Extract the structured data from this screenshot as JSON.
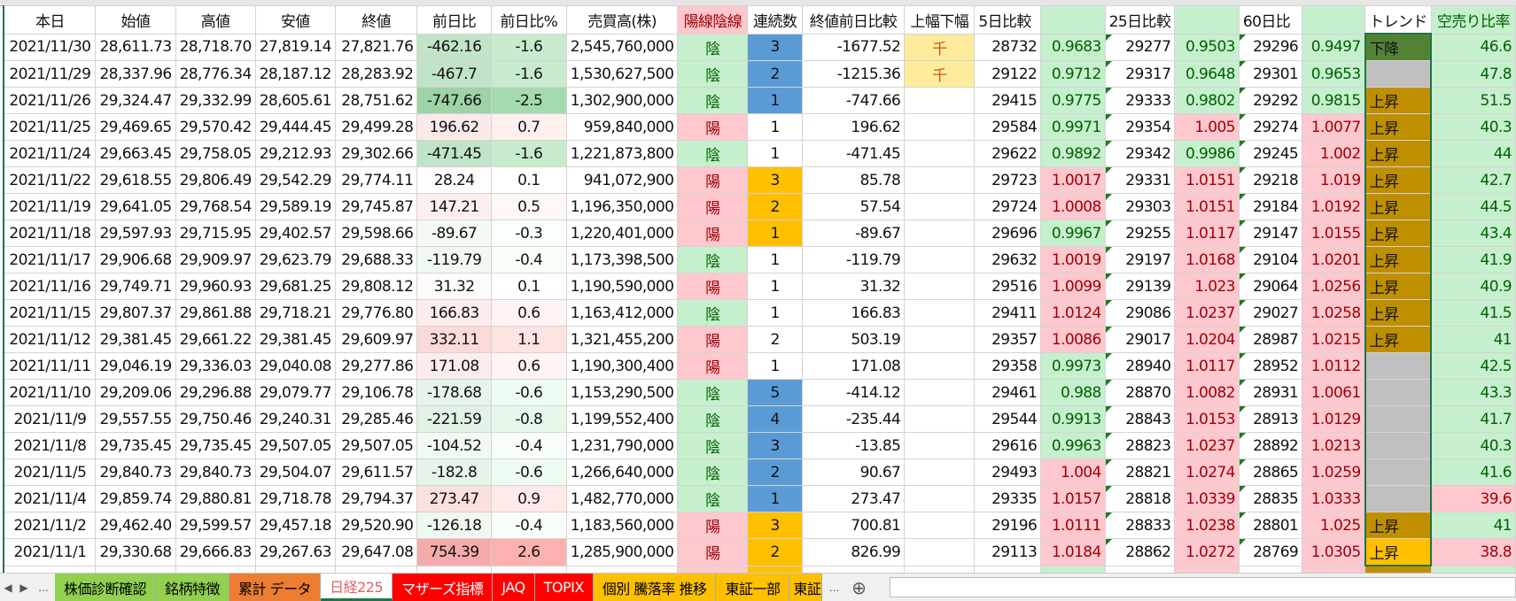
{
  "headers": [
    "本日",
    "始値",
    "高値",
    "安値",
    "終値",
    "前日比",
    "前日比%",
    "売買高(株)",
    "陽線陰線",
    "連続数",
    "終値前日比較",
    "上幅下幅",
    "5日比較",
    "",
    "25日比較",
    "",
    "60日比",
    "",
    "トレンド",
    "空売り比率"
  ],
  "rows": [
    [
      "2021/11/30",
      "28,611.73",
      "28,718.70",
      "27,819.14",
      "27,821.76",
      "-462.16",
      "-1.6",
      "2,545,760,000",
      "陰",
      "3",
      "-1677.52",
      "千",
      "28732",
      "0.9683",
      "29277",
      "0.9503",
      "29296",
      "0.9497",
      "下降",
      "46.6"
    ],
    [
      "2021/11/29",
      "28,337.96",
      "28,776.34",
      "28,187.12",
      "28,283.92",
      "-467.7",
      "-1.6",
      "1,530,627,500",
      "陰",
      "2",
      "-1215.36",
      "千",
      "29122",
      "0.9712",
      "29317",
      "0.9648",
      "29301",
      "0.9653",
      "",
      "47.8"
    ],
    [
      "2021/11/26",
      "29,324.47",
      "29,332.99",
      "28,605.61",
      "28,751.62",
      "-747.66",
      "-2.5",
      "1,302,900,000",
      "陰",
      "1",
      "-747.66",
      "",
      "29415",
      "0.9775",
      "29333",
      "0.9802",
      "29292",
      "0.9815",
      "上昇",
      "51.5"
    ],
    [
      "2021/11/25",
      "29,469.65",
      "29,570.42",
      "29,444.45",
      "29,499.28",
      "196.62",
      "0.7",
      "959,840,000",
      "陽",
      "1",
      "196.62",
      "",
      "29584",
      "0.9971",
      "29354",
      "1.005",
      "29274",
      "1.0077",
      "上昇",
      "40.3"
    ],
    [
      "2021/11/24",
      "29,663.45",
      "29,758.05",
      "29,212.93",
      "29,302.66",
      "-471.45",
      "-1.6",
      "1,221,873,800",
      "陰",
      "1",
      "-471.45",
      "",
      "29622",
      "0.9892",
      "29342",
      "0.9986",
      "29245",
      "1.002",
      "上昇",
      "44"
    ],
    [
      "2021/11/22",
      "29,618.55",
      "29,806.49",
      "29,542.29",
      "29,774.11",
      "28.24",
      "0.1",
      "941,072,900",
      "陽",
      "3",
      "85.78",
      "",
      "29723",
      "1.0017",
      "29331",
      "1.0151",
      "29218",
      "1.019",
      "上昇",
      "42.7"
    ],
    [
      "2021/11/19",
      "29,641.05",
      "29,768.54",
      "29,589.19",
      "29,745.87",
      "147.21",
      "0.5",
      "1,196,350,000",
      "陽",
      "2",
      "57.54",
      "",
      "29724",
      "1.0008",
      "29303",
      "1.0151",
      "29184",
      "1.0192",
      "上昇",
      "44.5"
    ],
    [
      "2021/11/18",
      "29,597.93",
      "29,715.95",
      "29,402.57",
      "29,598.66",
      "-89.67",
      "-0.3",
      "1,220,401,000",
      "陽",
      "1",
      "-89.67",
      "",
      "29696",
      "0.9967",
      "29255",
      "1.0117",
      "29147",
      "1.0155",
      "上昇",
      "43.4"
    ],
    [
      "2021/11/17",
      "29,906.68",
      "29,909.97",
      "29,623.79",
      "29,688.33",
      "-119.79",
      "-0.4",
      "1,173,398,500",
      "陰",
      "1",
      "-119.79",
      "",
      "29632",
      "1.0019",
      "29197",
      "1.0168",
      "29104",
      "1.0201",
      "上昇",
      "41.9"
    ],
    [
      "2021/11/16",
      "29,749.71",
      "29,960.93",
      "29,681.25",
      "29,808.12",
      "31.32",
      "0.1",
      "1,190,590,000",
      "陽",
      "1",
      "31.32",
      "",
      "29516",
      "1.0099",
      "29139",
      "1.023",
      "29064",
      "1.0256",
      "上昇",
      "40.9"
    ],
    [
      "2021/11/15",
      "29,807.37",
      "29,861.88",
      "29,718.21",
      "29,776.80",
      "166.83",
      "0.6",
      "1,163,412,000",
      "陰",
      "1",
      "166.83",
      "",
      "29411",
      "1.0124",
      "29086",
      "1.0237",
      "29027",
      "1.0258",
      "上昇",
      "41.5"
    ],
    [
      "2021/11/12",
      "29,381.45",
      "29,661.22",
      "29,381.45",
      "29,609.97",
      "332.11",
      "1.1",
      "1,321,455,200",
      "陽",
      "2",
      "503.19",
      "",
      "29357",
      "1.0086",
      "29017",
      "1.0204",
      "28987",
      "1.0215",
      "上昇",
      "41"
    ],
    [
      "2021/11/11",
      "29,046.19",
      "29,336.03",
      "29,040.08",
      "29,277.86",
      "171.08",
      "0.6",
      "1,190,300,400",
      "陽",
      "1",
      "171.08",
      "",
      "29358",
      "0.9973",
      "28940",
      "1.0117",
      "28952",
      "1.0112",
      "",
      "42.5"
    ],
    [
      "2021/11/10",
      "29,209.06",
      "29,296.88",
      "29,079.77",
      "29,106.78",
      "-178.68",
      "-0.6",
      "1,153,290,500",
      "陰",
      "5",
      "-414.12",
      "",
      "29461",
      "0.988",
      "28870",
      "1.0082",
      "28931",
      "1.0061",
      "",
      "43.3"
    ],
    [
      "2021/11/9",
      "29,557.55",
      "29,750.46",
      "29,240.31",
      "29,285.46",
      "-221.59",
      "-0.8",
      "1,199,552,400",
      "陰",
      "4",
      "-235.44",
      "",
      "29544",
      "0.9913",
      "28843",
      "1.0153",
      "28913",
      "1.0129",
      "",
      "41.7"
    ],
    [
      "2021/11/8",
      "29,735.45",
      "29,735.45",
      "29,507.05",
      "29,507.05",
      "-104.52",
      "-0.4",
      "1,231,790,000",
      "陰",
      "3",
      "-13.85",
      "",
      "29616",
      "0.9963",
      "28823",
      "1.0237",
      "28892",
      "1.0213",
      "",
      "40.3"
    ],
    [
      "2021/11/5",
      "29,840.73",
      "29,840.73",
      "29,504.07",
      "29,611.57",
      "-182.8",
      "-0.6",
      "1,266,640,000",
      "陰",
      "2",
      "90.67",
      "",
      "29493",
      "1.004",
      "28821",
      "1.0274",
      "28865",
      "1.0259",
      "",
      "41.6"
    ],
    [
      "2021/11/4",
      "29,859.74",
      "29,880.81",
      "29,718.78",
      "29,794.37",
      "273.47",
      "0.9",
      "1,482,770,000",
      "陰",
      "1",
      "273.47",
      "",
      "29335",
      "1.0157",
      "28818",
      "1.0339",
      "28835",
      "1.0333",
      "",
      "39.6"
    ],
    [
      "2021/11/2",
      "29,462.40",
      "29,599.57",
      "29,457.18",
      "29,520.90",
      "-126.18",
      "-0.4",
      "1,183,560,000",
      "陽",
      "3",
      "700.81",
      "",
      "29196",
      "1.0111",
      "28833",
      "1.0238",
      "28801",
      "1.025",
      "上昇",
      "41"
    ],
    [
      "2021/11/1",
      "29,330.68",
      "29,666.83",
      "29,267.63",
      "29,647.08",
      "754.39",
      "2.6",
      "1,285,900,000",
      "陽",
      "2",
      "826.99",
      "",
      "29113",
      "1.0184",
      "28862",
      "1.0272",
      "28769",
      "1.0305",
      "上昇",
      "38.8"
    ]
  ],
  "streak_colors": [
    "blue",
    "blue",
    "blue",
    "",
    "",
    "orange",
    "orange",
    "orange",
    "",
    "",
    "",
    "",
    "",
    "blue",
    "blue",
    "blue",
    "blue",
    "blue",
    "orange",
    "orange"
  ],
  "trend_colors": [
    "#548235",
    "#c0c0c0",
    "#bf8f00",
    "#bf8f00",
    "#bf8f00",
    "#bf8f00",
    "#bf8f00",
    "#bf8f00",
    "#bf8f00",
    "#bf8f00",
    "#bf8f00",
    "#bf8f00",
    "#c0c0c0",
    "#c0c0c0",
    "#c0c0c0",
    "#c0c0c0",
    "#c0c0c0",
    "#c0c0c0",
    "#bf8f00",
    "#ffc000"
  ],
  "colors": {
    "green_bg": "#c6efce",
    "green_text": "#006100",
    "red_bg": "#ffc7ce",
    "red_text": "#9c0006",
    "blue": "#5b9bd5",
    "orange": "#ffc000",
    "yellow": "#ffeb9c",
    "selection": "#217346"
  },
  "tabs": [
    {
      "label": "株価診断確認",
      "bg": "#92d050",
      "fg": "#000"
    },
    {
      "label": "銘柄特徴",
      "bg": "#92d050",
      "fg": "#000"
    },
    {
      "label": "累計 データ",
      "bg": "#ed7d31",
      "fg": "#000"
    },
    {
      "label": "日経225",
      "bg": "#ffffff",
      "fg": "#e0606a",
      "active": true
    },
    {
      "label": "マザーズ指標",
      "bg": "#ff0000",
      "fg": "#fff"
    },
    {
      "label": "JAQ",
      "bg": "#ff0000",
      "fg": "#fff"
    },
    {
      "label": "TOPIX",
      "bg": "#ff0000",
      "fg": "#fff"
    },
    {
      "label": "個別 騰落率 推移",
      "bg": "#ffc000",
      "fg": "#000"
    },
    {
      "label": "東証一部",
      "bg": "#ffc000",
      "fg": "#000"
    },
    {
      "label": "東証",
      "bg": "#ffc000",
      "fg": "#000"
    }
  ],
  "tabbar": {
    "more_left": "...",
    "more_right": "...",
    "add": "⊕",
    "prev": "◀",
    "next": "▶"
  }
}
